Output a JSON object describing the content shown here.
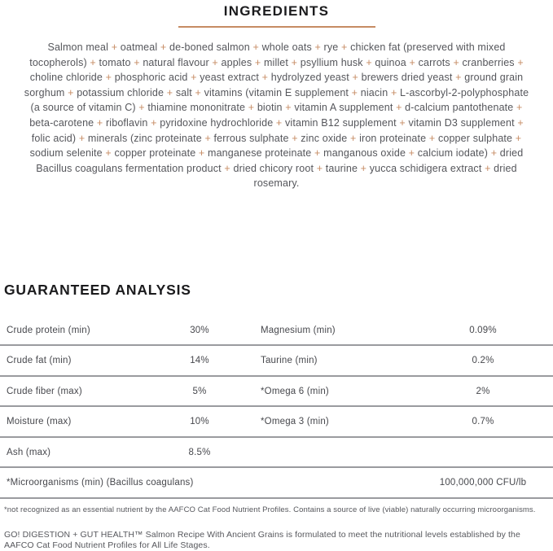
{
  "colors": {
    "accent": "#c68b63",
    "heading": "#1b1b1d",
    "body_text": "#55565b",
    "rule_gray": "#9a9b9f"
  },
  "ingredients": {
    "title": "INGREDIENTS",
    "text": "Salmon meal + oatmeal + de-boned salmon + whole oats + rye + chicken fat (preserved with mixed tocopherols) + tomato + natural flavour + apples + millet + psyllium husk + quinoa + carrots + cranberries + choline chloride + phosphoric acid + yeast extract + hydrolyzed yeast + brewers dried yeast + ground grain sorghum + potassium chloride + salt + vitamins (vitamin E supplement + niacin + L-ascorbyl-2-polyphosphate (a source of vitamin C) + thiamine mononitrate + biotin + vitamin A supplement + d-calcium pantothenate + beta-carotene + riboflavin + pyridoxine hydrochloride + vitamin B12 supplement + vitamin D3 supplement + folic acid) + minerals (zinc proteinate + ferrous sulphate + zinc oxide + iron proteinate + copper sulphate + sodium selenite + copper proteinate + manganese proteinate + manganous oxide + calcium iodate) + dried Bacillus coagulans fermentation product + dried chicory root + taurine + yucca schidigera extract + dried rosemary."
  },
  "guaranteed_analysis": {
    "title": "GUARANTEED ANALYSIS",
    "rows": [
      {
        "left_label": "Crude protein (min)",
        "left_value": "30%",
        "right_label": "Magnesium (min)",
        "right_value": "0.09%"
      },
      {
        "left_label": "Crude fat (min)",
        "left_value": "14%",
        "right_label": "Taurine (min)",
        "right_value": "0.2%"
      },
      {
        "left_label": "Crude fiber (max)",
        "left_value": "5%",
        "right_label": "*Omega 6 (min)",
        "right_value": "2%"
      },
      {
        "left_label": "Moisture (max)",
        "left_value": "10%",
        "right_label": "*Omega 3 (min)",
        "right_value": "0.7%"
      },
      {
        "left_label": "Ash (max)",
        "left_value": "8.5%",
        "right_label": "",
        "right_value": ""
      },
      {
        "label": "*Microorganisms (min) (Bacillus coagulans)",
        "value": "100,000,000 CFU/lb"
      }
    ]
  },
  "footnote": "*not recognized as an essential nutrient by the AAFCO Cat Food Nutrient Profiles. Contains a source of live (viable) naturally occurring microorganisms.",
  "formulation": "GO! DIGESTION + GUT HEALTH™ Salmon Recipe With Ancient Grains is formulated to meet the nutritional levels established by the AAFCO Cat Food Nutrient Profiles for All Life Stages."
}
